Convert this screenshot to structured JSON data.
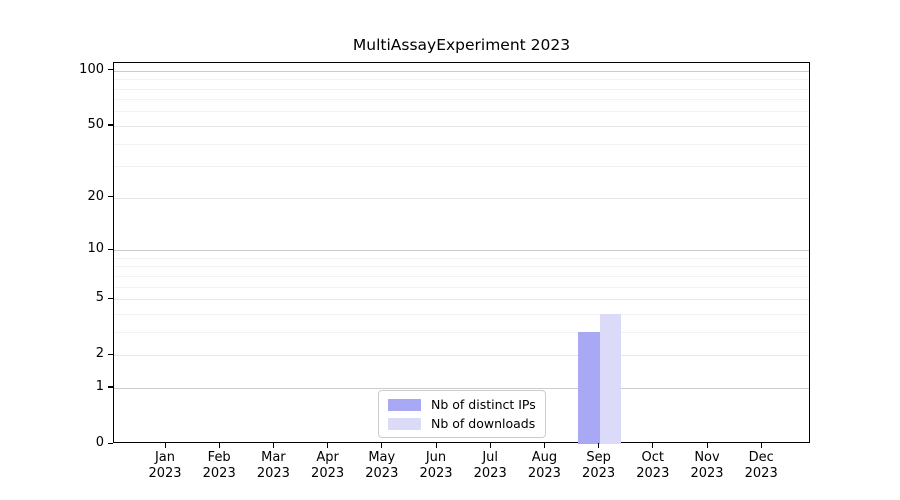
{
  "chart_data": {
    "type": "bar",
    "title": "MultiAssayExperiment 2023",
    "categories": [
      "Jan",
      "Feb",
      "Mar",
      "Apr",
      "May",
      "Jun",
      "Jul",
      "Aug",
      "Sep",
      "Oct",
      "Nov",
      "Dec"
    ],
    "category_year": "2023",
    "series": [
      {
        "name": "Nb of distinct IPs",
        "color": "#a8a8f5",
        "values": [
          0,
          0,
          0,
          0,
          0,
          0,
          0,
          0,
          3,
          0,
          0,
          0
        ]
      },
      {
        "name": "Nb of downloads",
        "color": "#dbdbf9",
        "values": [
          0,
          0,
          0,
          0,
          0,
          0,
          0,
          0,
          4,
          0,
          0,
          0
        ]
      }
    ],
    "yscale": "log1p",
    "yticks": [
      0,
      1,
      2,
      5,
      10,
      20,
      50,
      100
    ],
    "ylim": [
      0,
      110
    ],
    "xlabel": "",
    "ylabel": "",
    "grid": "horizontal",
    "legend_position": "bottom-center"
  }
}
